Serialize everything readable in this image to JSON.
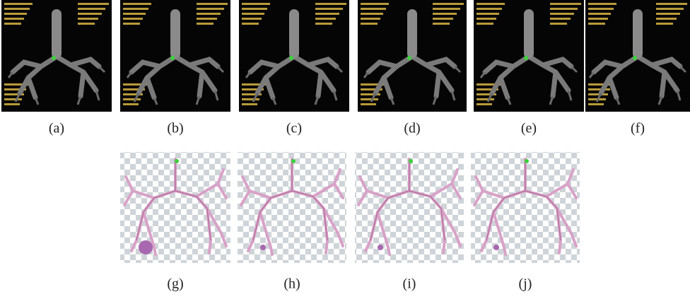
{
  "captions": [
    "(a)",
    "(b)",
    "(c)",
    "(d)",
    "(e)",
    "(f)",
    "(g)",
    "(h)",
    "(i)",
    "(j)"
  ]
}
